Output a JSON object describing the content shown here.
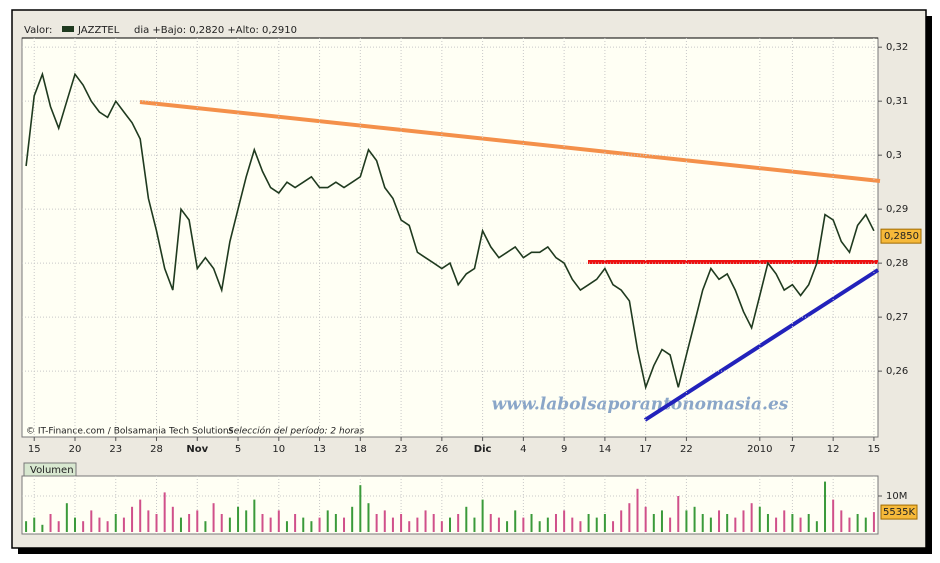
{
  "header": {
    "label": "Valor:",
    "symbol": "JAZZTEL",
    "range": "dia +Bajo: 0,2820 +Alto: 0,2910"
  },
  "footer": {
    "credit": "© IT-Finance.com / Bolsamania Tech Solutions",
    "period": "Selección del período: 2 horas"
  },
  "watermark": "www.labolsaporantonomasia.es",
  "chart_data": [
    {
      "type": "line",
      "color": "#1f3a1f",
      "categories": [
        null,
        "15",
        null,
        null,
        null,
        null,
        "20",
        null,
        null,
        null,
        null,
        "23",
        null,
        null,
        null,
        null,
        "28",
        null,
        null,
        null,
        null,
        "Nov",
        null,
        null,
        null,
        null,
        "5",
        null,
        null,
        null,
        null,
        "10",
        null,
        null,
        null,
        null,
        "13",
        null,
        null,
        null,
        null,
        "18",
        null,
        null,
        null,
        null,
        "23",
        null,
        null,
        null,
        null,
        "26",
        null,
        null,
        null,
        null,
        "Dic",
        null,
        null,
        null,
        null,
        "4",
        null,
        null,
        null,
        null,
        "9",
        null,
        null,
        null,
        null,
        "14",
        null,
        null,
        null,
        null,
        "17",
        null,
        null,
        null,
        null,
        "22",
        null,
        null,
        null,
        null,
        null,
        null,
        null,
        null,
        "2010",
        null,
        null,
        null,
        "7",
        null,
        null,
        null,
        null,
        "12",
        null,
        null,
        null,
        null,
        "15"
      ],
      "values": [
        0.298,
        0.311,
        0.315,
        0.309,
        0.305,
        0.31,
        0.315,
        0.313,
        0.31,
        0.308,
        0.307,
        0.31,
        0.308,
        0.306,
        0.303,
        0.292,
        0.286,
        0.279,
        0.275,
        0.29,
        0.288,
        0.279,
        0.281,
        0.279,
        0.275,
        0.284,
        0.29,
        0.296,
        0.301,
        0.297,
        0.294,
        0.293,
        0.295,
        0.294,
        0.295,
        0.296,
        0.294,
        0.294,
        0.295,
        0.294,
        0.295,
        0.296,
        0.301,
        0.299,
        0.294,
        0.292,
        0.288,
        0.287,
        0.282,
        0.281,
        0.28,
        0.279,
        0.28,
        0.276,
        0.278,
        0.279,
        0.286,
        0.283,
        0.281,
        0.282,
        0.283,
        0.281,
        0.282,
        0.282,
        0.283,
        0.281,
        0.28,
        0.277,
        0.275,
        0.276,
        0.277,
        0.279,
        0.276,
        0.275,
        0.273,
        0.264,
        0.257,
        0.261,
        0.264,
        0.263,
        0.257,
        0.263,
        0.269,
        0.275,
        0.279,
        0.277,
        0.278,
        0.275,
        0.271,
        0.268,
        0.274,
        0.28,
        0.278,
        0.275,
        0.276,
        0.274,
        0.276,
        0.28,
        0.289,
        0.288,
        0.284,
        0.282,
        0.287,
        0.289,
        0.286
      ],
      "ylim": [
        0.2478,
        0.3217
      ],
      "yticks": [
        {
          "value": 0.26,
          "label": "0,26"
        },
        {
          "value": 0.27,
          "label": "0,27"
        },
        {
          "value": 0.28,
          "label": "0,28"
        },
        {
          "value": 0.29,
          "label": "0,29"
        },
        {
          "value": 0.3,
          "label": "0,3"
        },
        {
          "value": 0.31,
          "label": "0,31"
        },
        {
          "value": 0.32,
          "label": "0,32"
        }
      ],
      "current": {
        "value": 0.285,
        "label": "0,2850"
      },
      "grid": true
    },
    {
      "type": "bar",
      "title": "Volumen",
      "up_color": "#3a9a3a",
      "down_color": "#d0508a",
      "values": [
        3000000,
        4000000,
        2000000,
        5000000,
        3000000,
        8000000,
        4000000,
        3000000,
        6000000,
        4000000,
        3000000,
        5000000,
        4000000,
        7000000,
        9000000,
        6000000,
        5000000,
        11000000,
        7000000,
        4000000,
        5000000,
        6000000,
        3000000,
        8000000,
        5000000,
        4000000,
        7000000,
        6000000,
        9000000,
        5000000,
        4000000,
        6000000,
        3000000,
        5000000,
        4000000,
        3000000,
        4000000,
        6000000,
        5000000,
        4000000,
        7000000,
        13000000,
        8000000,
        5000000,
        6000000,
        4000000,
        5000000,
        3000000,
        4000000,
        6000000,
        5000000,
        3000000,
        4000000,
        5000000,
        7000000,
        4000000,
        9000000,
        5000000,
        4000000,
        3000000,
        6000000,
        4000000,
        5000000,
        3000000,
        4000000,
        5000000,
        6000000,
        4000000,
        3000000,
        5000000,
        4000000,
        5000000,
        3000000,
        6000000,
        8000000,
        12000000,
        7000000,
        5000000,
        6000000,
        4000000,
        10000000,
        6000000,
        7000000,
        5000000,
        4000000,
        6000000,
        5000000,
        4000000,
        6000000,
        8000000,
        7000000,
        5000000,
        4000000,
        6000000,
        5000000,
        4000000,
        5000000,
        3000000,
        14000000,
        9000000,
        6000000,
        4000000,
        5000000,
        4000000,
        5535000
      ],
      "ylim": [
        0,
        15000000
      ],
      "yticks": [
        {
          "value": 10000000,
          "label": "10M"
        }
      ],
      "current": {
        "value": 5535000,
        "label": "5535K"
      }
    }
  ]
}
